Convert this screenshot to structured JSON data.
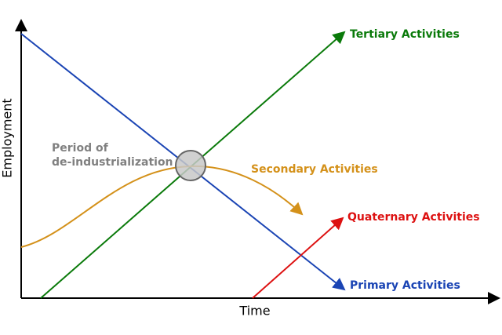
{
  "axes": {
    "y_label": "Employment",
    "x_label": "Time"
  },
  "lines": [
    {
      "label": "Tertiary Activities"
    },
    {
      "label": "Secondary Activities"
    },
    {
      "label": "Quaternary Activities"
    },
    {
      "label": "Primary Activities"
    }
  ],
  "annotation": {
    "lines": [
      "Period of",
      "de-industrialization"
    ]
  }
}
